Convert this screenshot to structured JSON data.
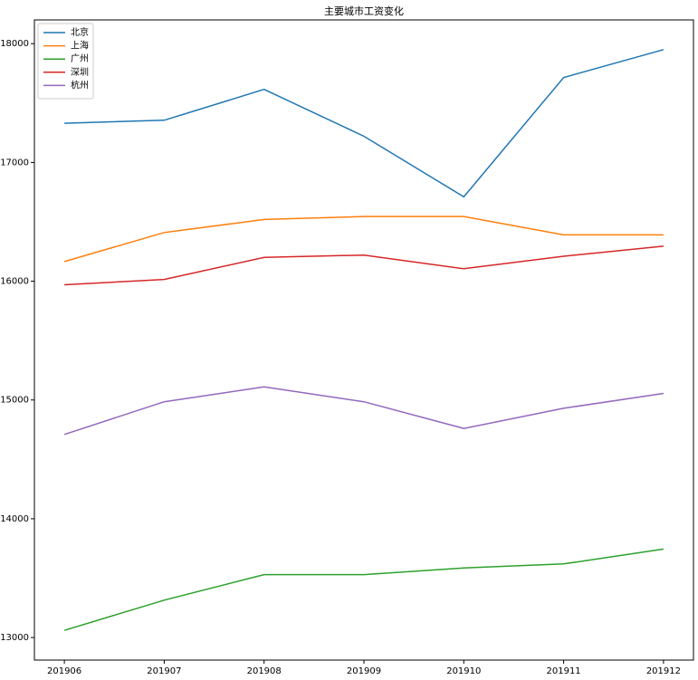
{
  "chart_data": {
    "type": "line",
    "title": "主要城市工资变化",
    "categories": [
      "201906",
      "201907",
      "201908",
      "201909",
      "201910",
      "201911",
      "201912"
    ],
    "series": [
      {
        "name": "北京",
        "color": "#1f77b4",
        "values": [
          17330,
          17355,
          17615,
          17220,
          16710,
          17715,
          17950
        ]
      },
      {
        "name": "上海",
        "color": "#ff7f0e",
        "values": [
          16165,
          16410,
          16520,
          16545,
          16545,
          16390,
          16390
        ]
      },
      {
        "name": "广州",
        "color": "#2ca02c",
        "values": [
          13060,
          13315,
          13530,
          13530,
          13585,
          13620,
          13745
        ]
      },
      {
        "name": "深圳",
        "color": "#d62728",
        "values": [
          15970,
          16015,
          16200,
          16220,
          16105,
          16210,
          16295
        ]
      },
      {
        "name": "杭州",
        "color": "#9467bd",
        "values": [
          14710,
          14985,
          15110,
          14985,
          14760,
          14930,
          15055
        ]
      }
    ],
    "ylim": [
      12810,
      18200
    ],
    "yticks": [
      13000,
      14000,
      15000,
      16000,
      17000,
      18000
    ],
    "legend": "upper left"
  }
}
